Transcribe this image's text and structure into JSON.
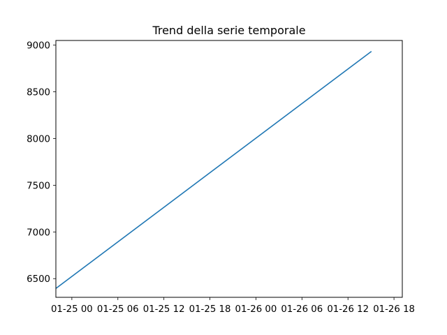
{
  "chart_data": {
    "type": "line",
    "title": "Trend della serie temporale",
    "xlabel": "",
    "ylabel": "",
    "x_tick_labels": [
      "01-25 00",
      "01-25 06",
      "01-25 12",
      "01-25 18",
      "01-26 00",
      "01-26 06",
      "01-26 12",
      "01-26 18"
    ],
    "y_tick_labels": [
      "6500",
      "7000",
      "7500",
      "8000",
      "8500",
      "9000"
    ],
    "y_ticks": [
      6500,
      7000,
      7500,
      8000,
      8500,
      9000
    ],
    "ylim": [
      6300,
      9050
    ],
    "xlim": [
      "01-24 21:55",
      "01-26 19:05"
    ],
    "grid": false,
    "series": [
      {
        "color": "#1f77b4",
        "x": [
          "01-24 22:00",
          "01-26 15:00"
        ],
        "y": [
          6400,
          8930
        ]
      }
    ]
  }
}
